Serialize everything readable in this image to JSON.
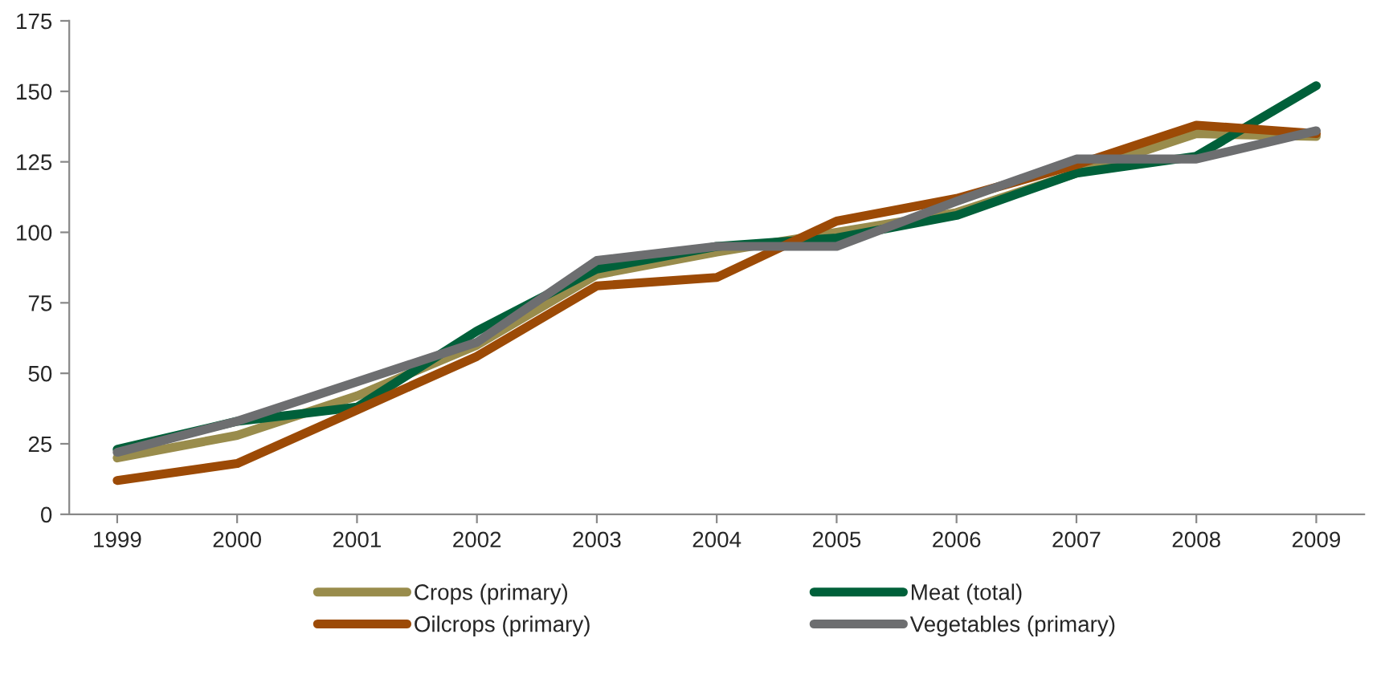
{
  "chart_data": {
    "type": "line",
    "categories": [
      "1999",
      "2000",
      "2001",
      "2002",
      "2003",
      "2004",
      "2005",
      "2006",
      "2007",
      "2008",
      "2009"
    ],
    "series": [
      {
        "name": "Crops (primary)",
        "color": "#998c4c",
        "values": [
          20,
          28,
          42,
          60,
          85,
          93,
          100,
          107,
          121,
          135,
          134
        ]
      },
      {
        "name": "Meat (total)",
        "color": "#00603a",
        "values": [
          23,
          33,
          38,
          65,
          87,
          95,
          98,
          106,
          121,
          127,
          152
        ]
      },
      {
        "name": "Oilcrops (primary)",
        "color": "#9c4a06",
        "values": [
          12,
          18,
          37,
          56,
          81,
          84,
          104,
          112,
          124,
          138,
          135
        ]
      },
      {
        "name": "Vegetables (primary)",
        "color": "#6d6e70",
        "values": [
          22,
          33,
          47,
          61,
          90,
          95,
          95,
          111,
          126,
          126,
          136
        ]
      }
    ],
    "ylim": [
      0,
      175
    ],
    "yticks": [
      0,
      25,
      50,
      75,
      100,
      125,
      150,
      175
    ],
    "grid": false,
    "legend": "bottom",
    "marker": "none",
    "line_style": "solid"
  }
}
